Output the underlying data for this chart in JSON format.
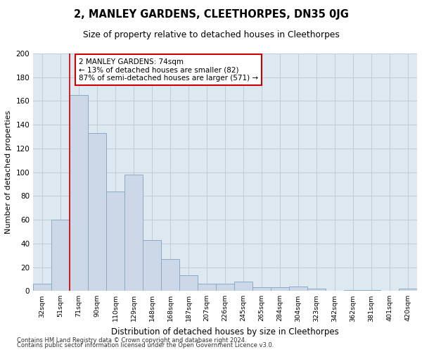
{
  "title": "2, MANLEY GARDENS, CLEETHORPES, DN35 0JG",
  "subtitle": "Size of property relative to detached houses in Cleethorpes",
  "xlabel": "Distribution of detached houses by size in Cleethorpes",
  "ylabel": "Number of detached properties",
  "footer1": "Contains HM Land Registry data © Crown copyright and database right 2024.",
  "footer2": "Contains public sector information licensed under the Open Government Licence v3.0.",
  "bar_color": "#cddaе8",
  "bar_edge_color": "#8aaac8",
  "grid_color": "#b8c8d8",
  "bg_color": "#dde8f0",
  "annotation_text": "2 MANLEY GARDENS: 74sqm\n← 13% of detached houses are smaller (82)\n87% of semi-detached houses are larger (571) →",
  "annotation_box_color": "#ffffff",
  "annotation_box_edge": "#cc0000",
  "categories": [
    "32sqm",
    "51sqm",
    "71sqm",
    "90sqm",
    "110sqm",
    "129sqm",
    "148sqm",
    "168sqm",
    "187sqm",
    "207sqm",
    "226sqm",
    "245sqm",
    "265sqm",
    "284sqm",
    "304sqm",
    "323sqm",
    "342sqm",
    "362sqm",
    "381sqm",
    "401sqm",
    "420sqm"
  ],
  "values": [
    6,
    60,
    165,
    133,
    84,
    98,
    43,
    27,
    13,
    6,
    6,
    8,
    3,
    3,
    4,
    2,
    0,
    1,
    1,
    0,
    2
  ],
  "ylim": [
    0,
    200
  ],
  "yticks": [
    0,
    20,
    40,
    60,
    80,
    100,
    120,
    140,
    160,
    180,
    200
  ],
  "property_line_idx": 1.5,
  "figsize": [
    6.0,
    5.0
  ],
  "dpi": 100
}
